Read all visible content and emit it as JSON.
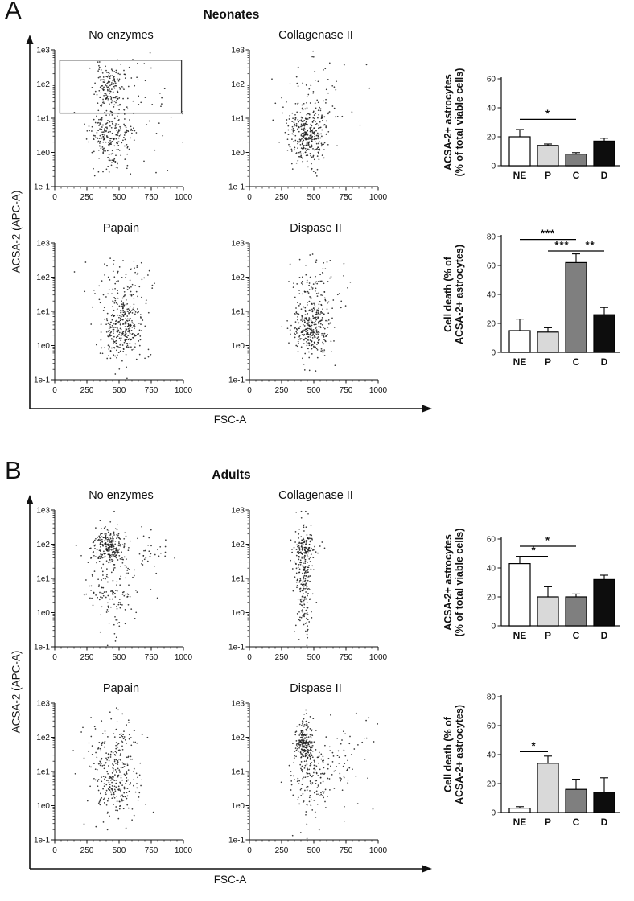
{
  "style": {
    "bar_fills": [
      "#ffffff",
      "#d9d9d9",
      "#7f7f7f",
      "#0d0d0d"
    ],
    "axis_color": "#111111",
    "dot_color": "#1c1c1c"
  },
  "panels": [
    {
      "label": "A",
      "title": "Neonates",
      "y_axis_label": "ACSA-2 (APC-A)",
      "x_axis_label": "FSC-A",
      "y_tick_labels": [
        "1e3",
        "1e2",
        "1e1",
        "1e0",
        "1e-1"
      ],
      "x_tick_labels": [
        "0",
        "250",
        "500",
        "750",
        "1000"
      ],
      "scatter_ids": [
        "A-ne",
        "A-col",
        "A-pap",
        "A-dis"
      ],
      "bar_ids": [
        "A-astro",
        "A-death"
      ]
    },
    {
      "label": "B",
      "title": "Adults",
      "y_axis_label": "ACSA-2 (APC-A)",
      "x_axis_label": "FSC-A",
      "y_tick_labels": [
        "1e3",
        "1e2",
        "1e1",
        "1e0",
        "1e-1"
      ],
      "x_tick_labels": [
        "0",
        "250",
        "500",
        "750",
        "1000"
      ],
      "scatter_ids": [
        "B-ne",
        "B-col",
        "B-pap",
        "B-dis"
      ],
      "bar_ids": [
        "B-astro",
        "B-death"
      ]
    }
  ],
  "chart_data": [
    {
      "id": "A-astro",
      "panel": "A",
      "type": "bar",
      "title": "ACSA-2+ astrocytes (% of total viable cells) - Neonates",
      "ylabel_lines": [
        "ACSA-2+ astrocytes",
        "(% of total viable cells)"
      ],
      "categories": [
        "NE",
        "P",
        "C",
        "D"
      ],
      "values": [
        20,
        14,
        8,
        17
      ],
      "errors": [
        5,
        1,
        1,
        2
      ],
      "ylim": [
        0,
        60
      ],
      "yticks": [
        0,
        20,
        40,
        60
      ],
      "significance": [
        {
          "a": 0,
          "b": 2,
          "y": 32,
          "label": "*"
        }
      ]
    },
    {
      "id": "A-death",
      "panel": "A",
      "type": "bar",
      "title": "Cell death (% of ACSA-2+ astrocytes) - Neonates",
      "ylabel_lines": [
        "Cell death (% of",
        "ACSA-2+ astrocytes)"
      ],
      "categories": [
        "NE",
        "P",
        "C",
        "D"
      ],
      "values": [
        15,
        14,
        62,
        26
      ],
      "errors": [
        8,
        3,
        6,
        5
      ],
      "ylim": [
        0,
        80
      ],
      "yticks": [
        0,
        20,
        40,
        60,
        80
      ],
      "significance": [
        {
          "a": 0,
          "b": 2,
          "y": 78,
          "label": "***"
        },
        {
          "a": 1,
          "b": 2,
          "y": 70,
          "label": "***"
        },
        {
          "a": 2,
          "b": 3,
          "y": 70,
          "label": "**"
        }
      ]
    },
    {
      "id": "B-astro",
      "panel": "B",
      "type": "bar",
      "title": "ACSA-2+ astrocytes (% of total viable cells) - Adults",
      "ylabel_lines": [
        "ACSA-2+ astrocytes",
        "(% of total viable cells)"
      ],
      "categories": [
        "NE",
        "P",
        "C",
        "D"
      ],
      "values": [
        43,
        20,
        20,
        32
      ],
      "errors": [
        5,
        7,
        2,
        3
      ],
      "ylim": [
        0,
        60
      ],
      "yticks": [
        0,
        20,
        40,
        60
      ],
      "significance": [
        {
          "a": 0,
          "b": 2,
          "y": 55,
          "label": "*"
        },
        {
          "a": 0,
          "b": 1,
          "y": 48,
          "label": "*"
        }
      ]
    },
    {
      "id": "B-death",
      "panel": "B",
      "type": "bar",
      "title": "Cell death (% of ACSA-2+ astrocytes) - Adults",
      "ylabel_lines": [
        "Cell death (% of",
        "ACSA-2+ astrocytes)"
      ],
      "categories": [
        "NE",
        "P",
        "C",
        "D"
      ],
      "values": [
        3,
        34,
        16,
        14
      ],
      "errors": [
        1,
        5,
        7,
        10
      ],
      "ylim": [
        0,
        80
      ],
      "yticks": [
        0,
        20,
        40,
        60,
        80
      ],
      "significance": [
        {
          "a": 0,
          "b": 1,
          "y": 42,
          "label": "*"
        }
      ]
    },
    {
      "id": "A-ne",
      "panel": "A",
      "type": "scatter",
      "title": "No enzymes",
      "xlabel": "FSC-A",
      "ylabel": "ACSA-2 (APC-A)",
      "x_range": [
        0,
        1000
      ],
      "y_log_decades": [
        -1,
        3
      ],
      "seed": 11,
      "clusters": [
        {
          "n": 150,
          "cx": 420,
          "sx": 55,
          "cy_log": 1.9,
          "sy_log": 0.33
        },
        {
          "n": 230,
          "cx": 430,
          "sx": 80,
          "cy_log": 0.45,
          "sy_log": 0.5
        },
        {
          "n": 50,
          "cx": 650,
          "sx": 170,
          "cy_log": 1.5,
          "sy_log": 0.8
        }
      ],
      "gate": {
        "x0": 40,
        "x1": 985,
        "y0_log": 1.15,
        "y1_log": 2.7
      }
    },
    {
      "id": "A-col",
      "panel": "A",
      "type": "scatter",
      "title": "Collagenase II",
      "x_range": [
        0,
        1000
      ],
      "y_log_decades": [
        -1,
        3
      ],
      "seed": 12,
      "clusters": [
        {
          "n": 330,
          "cx": 450,
          "sx": 70,
          "cy_log": 0.5,
          "sy_log": 0.4
        },
        {
          "n": 70,
          "cx": 520,
          "sx": 140,
          "cy_log": 1.5,
          "sy_log": 0.55
        }
      ]
    },
    {
      "id": "A-pap",
      "panel": "A",
      "type": "scatter",
      "title": "Papain",
      "x_range": [
        0,
        1000
      ],
      "y_log_decades": [
        -1,
        3
      ],
      "seed": 13,
      "clusters": [
        {
          "n": 330,
          "cx": 510,
          "sx": 85,
          "cy_log": 0.55,
          "sy_log": 0.5
        },
        {
          "n": 70,
          "cx": 520,
          "sx": 120,
          "cy_log": 1.8,
          "sy_log": 0.4
        }
      ]
    },
    {
      "id": "A-dis",
      "panel": "A",
      "type": "scatter",
      "title": "Dispase II",
      "x_range": [
        0,
        1000
      ],
      "y_log_decades": [
        -1,
        3
      ],
      "seed": 14,
      "clusters": [
        {
          "n": 300,
          "cx": 480,
          "sx": 75,
          "cy_log": 0.5,
          "sy_log": 0.45
        },
        {
          "n": 90,
          "cx": 530,
          "sx": 130,
          "cy_log": 1.6,
          "sy_log": 0.5
        }
      ]
    },
    {
      "id": "B-ne",
      "panel": "B",
      "type": "scatter",
      "title": "No enzymes",
      "x_range": [
        0,
        1000
      ],
      "y_log_decades": [
        -1,
        3
      ],
      "seed": 21,
      "clusters": [
        {
          "n": 240,
          "cx": 420,
          "sx": 65,
          "cy_log": 1.95,
          "sy_log": 0.28
        },
        {
          "n": 150,
          "cx": 450,
          "sx": 100,
          "cy_log": 0.7,
          "sy_log": 0.6
        },
        {
          "n": 40,
          "cx": 720,
          "sx": 110,
          "cy_log": 1.8,
          "sy_log": 0.4
        }
      ]
    },
    {
      "id": "B-col",
      "panel": "B",
      "type": "scatter",
      "title": "Collagenase II",
      "x_range": [
        0,
        1000
      ],
      "y_log_decades": [
        -1,
        3
      ],
      "seed": 22,
      "clusters": [
        {
          "n": 220,
          "cx": 420,
          "sx": 32,
          "cy_log": 1.0,
          "sy_log": 0.75
        },
        {
          "n": 90,
          "cx": 435,
          "sx": 45,
          "cy_log": 1.9,
          "sy_log": 0.3
        }
      ]
    },
    {
      "id": "B-pap",
      "panel": "B",
      "type": "scatter",
      "title": "Papain",
      "x_range": [
        0,
        1000
      ],
      "y_log_decades": [
        -1,
        3
      ],
      "seed": 23,
      "clusters": [
        {
          "n": 240,
          "cx": 460,
          "sx": 90,
          "cy_log": 0.7,
          "sy_log": 0.55
        },
        {
          "n": 80,
          "cx": 460,
          "sx": 110,
          "cy_log": 1.8,
          "sy_log": 0.45
        }
      ]
    },
    {
      "id": "B-dis",
      "panel": "B",
      "type": "scatter",
      "title": "Dispase II",
      "x_range": [
        0,
        1000
      ],
      "y_log_decades": [
        -1,
        3
      ],
      "seed": 24,
      "clusters": [
        {
          "n": 190,
          "cx": 425,
          "sx": 32,
          "cy_log": 1.85,
          "sy_log": 0.3
        },
        {
          "n": 160,
          "cx": 470,
          "sx": 80,
          "cy_log": 0.8,
          "sy_log": 0.6
        },
        {
          "n": 70,
          "cx": 720,
          "sx": 120,
          "cy_log": 1.5,
          "sy_log": 0.7
        }
      ]
    }
  ]
}
